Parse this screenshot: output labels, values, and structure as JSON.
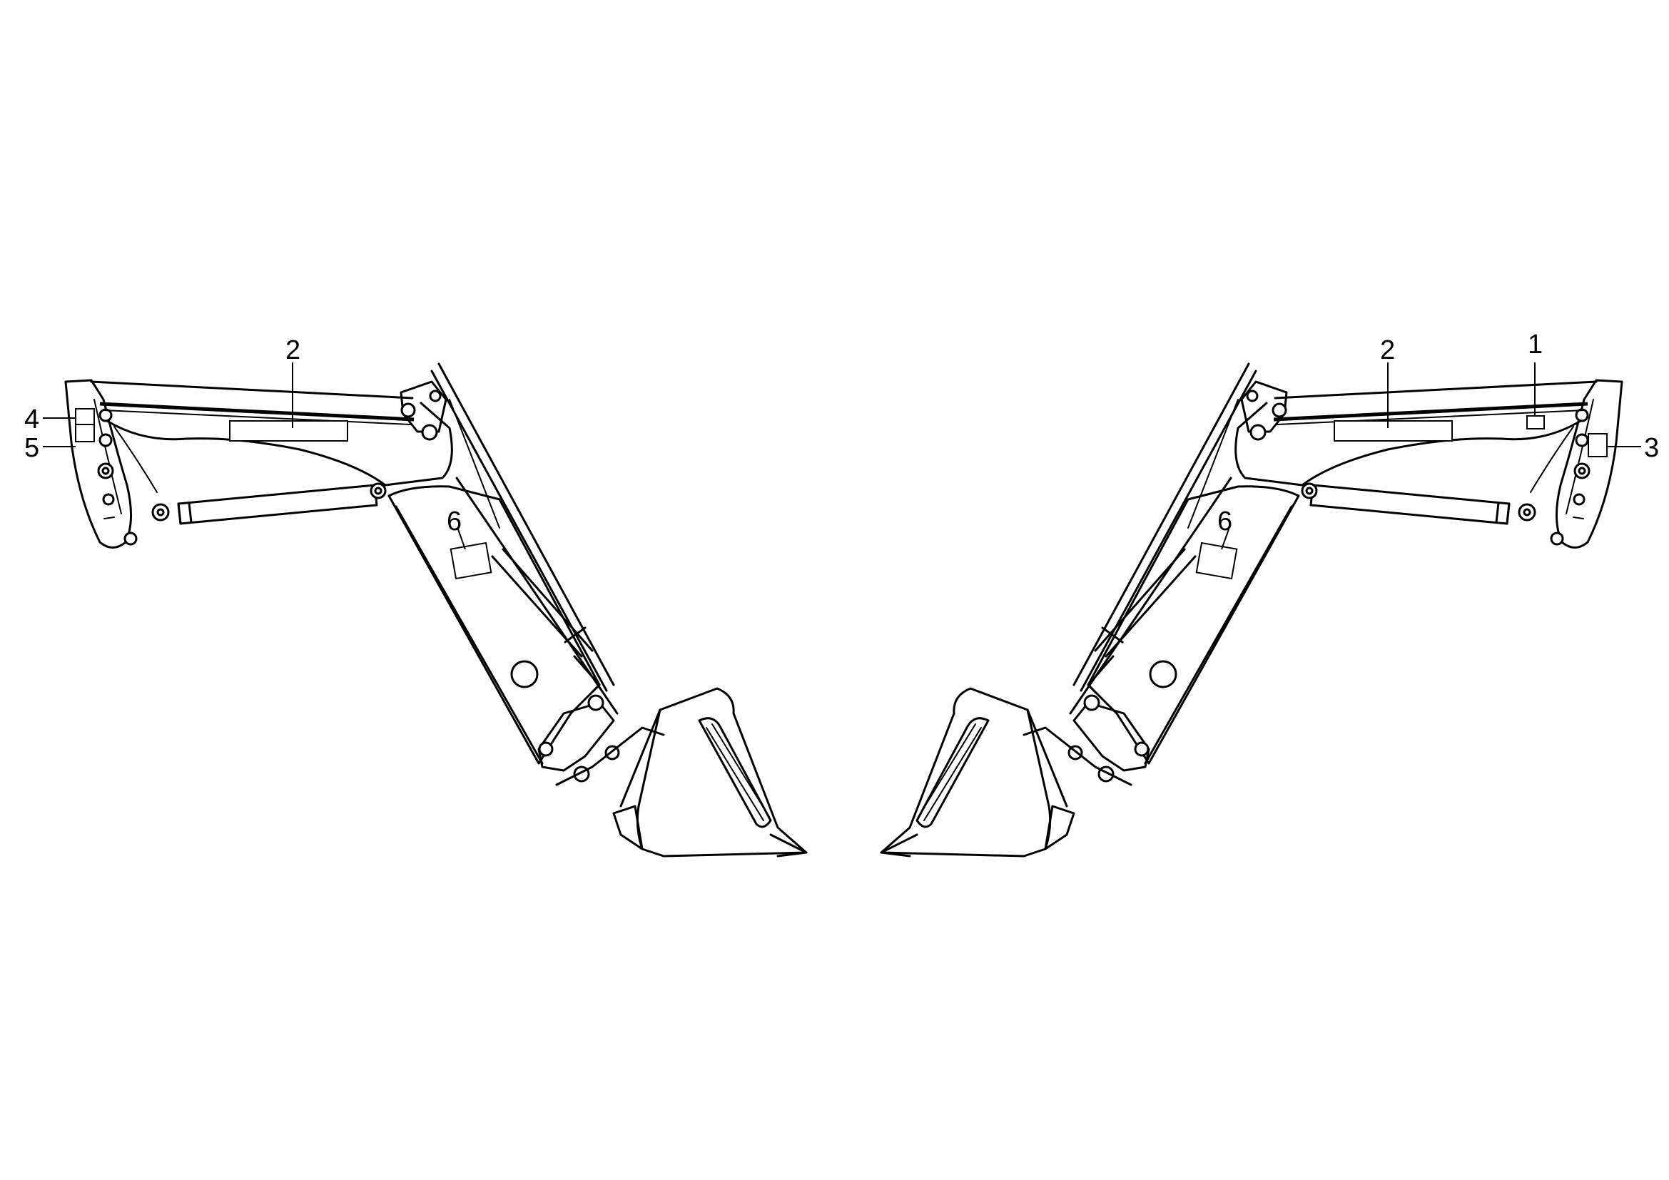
{
  "callouts": {
    "left_2": "2",
    "left_4": "4",
    "left_5": "5",
    "left_6": "6",
    "right_1": "1",
    "right_2": "2",
    "right_3": "3",
    "right_6": "6"
  }
}
